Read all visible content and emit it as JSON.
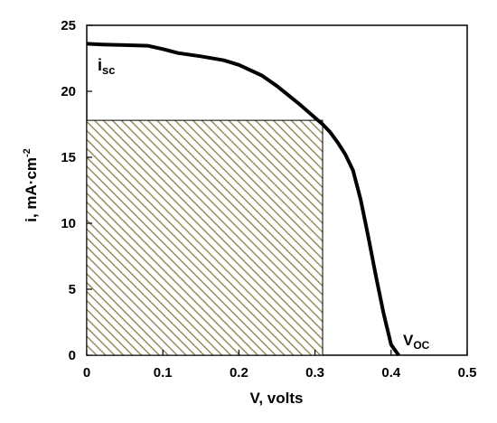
{
  "chart_data": {
    "type": "line",
    "title": "",
    "xlabel": "V, volts",
    "ylabel_main": "i,  mA·cm",
    "ylabel_sup": "-2",
    "xlim": [
      0,
      0.5
    ],
    "ylim": [
      0,
      25
    ],
    "xticks": [
      "0",
      "0.1",
      "0.2",
      "0.3",
      "0.4",
      "0.5"
    ],
    "yticks": [
      "0",
      "5",
      "10",
      "15",
      "20",
      "25"
    ],
    "grid": false,
    "series": [
      {
        "x": [
          0,
          0.02,
          0.05,
          0.08,
          0.1,
          0.12,
          0.15,
          0.18,
          0.2,
          0.23,
          0.25,
          0.28,
          0.3,
          0.31,
          0.32,
          0.33,
          0.34,
          0.35,
          0.36,
          0.37,
          0.38,
          0.39,
          0.4,
          0.41
        ],
        "y": [
          23.6,
          23.55,
          23.5,
          23.45,
          23.2,
          22.9,
          22.65,
          22.35,
          22.0,
          21.2,
          20.4,
          19.0,
          18.0,
          17.5,
          16.9,
          16.1,
          15.2,
          14.0,
          11.8,
          9.0,
          6.0,
          3.2,
          0.8,
          0.0
        ]
      }
    ],
    "shaded_region": {
      "x": [
        0,
        0.31
      ],
      "y": [
        0,
        17.8
      ],
      "pattern": "diagonal-hatch",
      "color": "#9a8c5e"
    },
    "annotations": {
      "isc_main": "i",
      "isc_sub": "sc",
      "voc_main": "V",
      "voc_sub": "OC"
    },
    "colors": {
      "line": "#000000",
      "hatch": "#9a8c5e",
      "hatch_bg": "#ffffff"
    }
  }
}
